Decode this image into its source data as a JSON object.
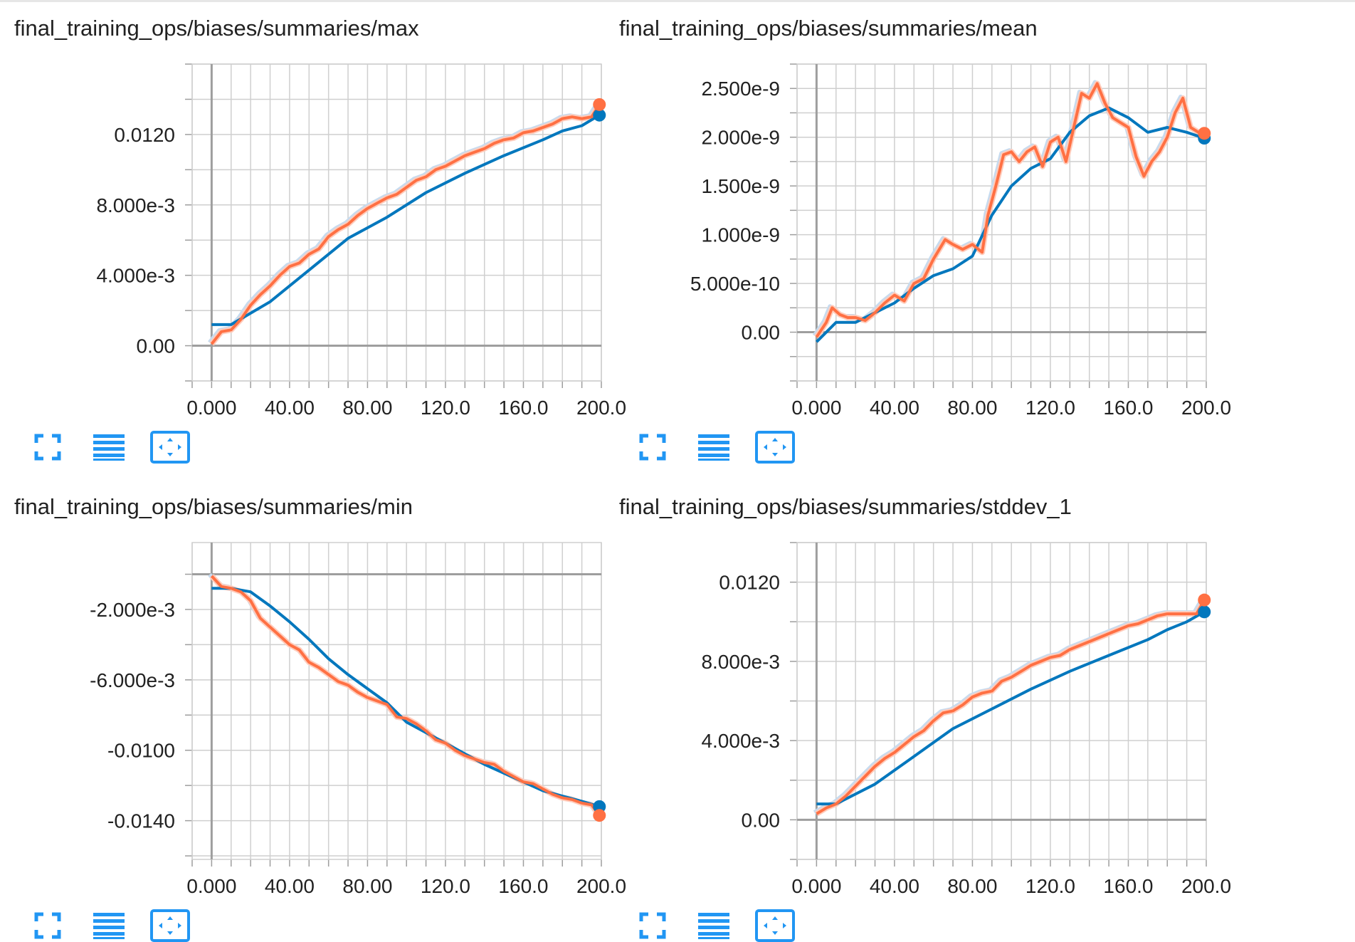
{
  "colors": {
    "smoothed": "#ff7043",
    "smoothed_shadow": "#ffccbc",
    "comparison": "#0277bd",
    "comparison_shadow": "#c6dbef",
    "grid": "#cfcfcf",
    "axis": "#9e9e9e",
    "toolbar_icon": "#2196f3"
  },
  "toolbar": {
    "icons": [
      "fullscreen-icon",
      "data-list-icon",
      "fit-domain-icon"
    ]
  },
  "chart_data": [
    {
      "type": "line",
      "title": "final_training_ops/biases/summaries/max",
      "xlim": [
        -10,
        200
      ],
      "ylim": [
        -0.002,
        0.016
      ],
      "x_ticks": [
        0,
        40,
        80,
        120,
        160,
        200
      ],
      "x_tick_labels": [
        "0.000",
        "40.00",
        "80.00",
        "120.0",
        "160.0",
        "200.0"
      ],
      "y_ticks": [
        0,
        0.004,
        0.008,
        0.012
      ],
      "y_tick_labels": [
        "0.00",
        "4.000e-3",
        "8.000e-3",
        "0.0120"
      ],
      "series": [
        {
          "role": "orange",
          "x": [
            0,
            5,
            10,
            15,
            20,
            25,
            30,
            35,
            40,
            45,
            50,
            55,
            60,
            65,
            70,
            75,
            80,
            85,
            90,
            95,
            100,
            105,
            110,
            115,
            120,
            125,
            130,
            135,
            140,
            145,
            150,
            155,
            160,
            165,
            170,
            175,
            180,
            185,
            190,
            195,
            199
          ],
          "y": [
            0.0001,
            0.0008,
            0.0009,
            0.0015,
            0.0023,
            0.0029,
            0.0034,
            0.004,
            0.0045,
            0.0047,
            0.0052,
            0.0055,
            0.0062,
            0.0066,
            0.0069,
            0.0074,
            0.0078,
            0.0081,
            0.0084,
            0.0086,
            0.009,
            0.0094,
            0.0096,
            0.01,
            0.0102,
            0.0105,
            0.0108,
            0.011,
            0.0112,
            0.0115,
            0.0117,
            0.0118,
            0.0121,
            0.0122,
            0.0124,
            0.0126,
            0.0129,
            0.013,
            0.0129,
            0.013,
            0.0137
          ]
        },
        {
          "role": "blue",
          "x": [
            0,
            10,
            30,
            50,
            70,
            90,
            110,
            130,
            150,
            170,
            180,
            190,
            199
          ],
          "y": [
            0.0012,
            0.0012,
            0.0025,
            0.0043,
            0.0061,
            0.0073,
            0.0087,
            0.0098,
            0.0108,
            0.0117,
            0.0122,
            0.0125,
            0.0131
          ]
        }
      ]
    },
    {
      "type": "line",
      "title": "final_training_ops/biases/summaries/mean",
      "xlim": [
        -10,
        200
      ],
      "ylim": [
        -5e-10,
        2.75e-09
      ],
      "x_ticks": [
        0,
        40,
        80,
        120,
        160,
        200
      ],
      "x_tick_labels": [
        "0.000",
        "40.00",
        "80.00",
        "120.0",
        "160.0",
        "200.0"
      ],
      "y_ticks": [
        0,
        5e-10,
        1e-09,
        1.5e-09,
        2e-09,
        2.5e-09
      ],
      "y_tick_labels": [
        "0.00",
        "5.000e-10",
        "1.000e-9",
        "1.500e-9",
        "2.000e-9",
        "2.500e-9"
      ],
      "series": [
        {
          "role": "orange",
          "x": [
            0,
            5,
            8,
            12,
            16,
            20,
            25,
            30,
            35,
            40,
            45,
            50,
            55,
            60,
            63,
            66,
            70,
            75,
            80,
            85,
            88,
            92,
            96,
            100,
            104,
            108,
            112,
            116,
            120,
            124,
            128,
            132,
            136,
            140,
            144,
            148,
            152,
            156,
            160,
            164,
            168,
            172,
            176,
            180,
            184,
            188,
            192,
            196,
            199
          ],
          "y": [
            -5e-11,
            1e-10,
            2.5e-10,
            1.8e-10,
            1.5e-10,
            1.5e-10,
            1.2e-10,
            2e-10,
            3e-10,
            3.8e-10,
            3.2e-10,
            5e-10,
            5.5e-10,
            7.5e-10,
            8.5e-10,
            9.5e-10,
            9e-10,
            8.5e-10,
            9e-10,
            8.2e-10,
            1.2e-09,
            1.5e-09,
            1.82e-09,
            1.85e-09,
            1.75e-09,
            1.85e-09,
            1.9e-09,
            1.7e-09,
            1.95e-09,
            2e-09,
            1.75e-09,
            2.1e-09,
            2.45e-09,
            2.4e-09,
            2.55e-09,
            2.35e-09,
            2.2e-09,
            2.15e-09,
            2.1e-09,
            1.8e-09,
            1.6e-09,
            1.75e-09,
            1.85e-09,
            2e-09,
            2.25e-09,
            2.4e-09,
            2.1e-09,
            2.05e-09,
            2.04e-09
          ]
        },
        {
          "role": "blue",
          "x": [
            0,
            10,
            20,
            30,
            40,
            50,
            60,
            70,
            80,
            90,
            100,
            110,
            120,
            130,
            140,
            150,
            160,
            170,
            180,
            190,
            199
          ],
          "y": [
            -1e-10,
            1e-10,
            1e-10,
            2e-10,
            3e-10,
            4.5e-10,
            5.8e-10,
            6.5e-10,
            7.8e-10,
            1.2e-09,
            1.5e-09,
            1.68e-09,
            1.78e-09,
            2.05e-09,
            2.22e-09,
            2.3e-09,
            2.2e-09,
            2.05e-09,
            2.1e-09,
            2.05e-09,
            1.99e-09
          ]
        }
      ]
    },
    {
      "type": "line",
      "title": "final_training_ops/biases/summaries/min",
      "xlim": [
        -10,
        200
      ],
      "ylim": [
        -0.0162,
        0.0018
      ],
      "x_ticks": [
        0,
        40,
        80,
        120,
        160,
        200
      ],
      "x_tick_labels": [
        "0.000",
        "40.00",
        "80.00",
        "120.0",
        "160.0",
        "200.0"
      ],
      "y_ticks": [
        -0.014,
        -0.01,
        -0.006,
        -0.002
      ],
      "y_tick_labels": [
        "-0.0140",
        "-0.0100",
        "-6.000e-3",
        "-2.000e-3"
      ],
      "series": [
        {
          "role": "orange",
          "x": [
            0,
            5,
            10,
            15,
            20,
            25,
            30,
            35,
            40,
            45,
            50,
            55,
            60,
            65,
            70,
            75,
            80,
            85,
            90,
            95,
            100,
            105,
            110,
            115,
            120,
            125,
            130,
            135,
            140,
            145,
            150,
            155,
            160,
            165,
            170,
            175,
            180,
            185,
            190,
            195,
            199
          ],
          "y": [
            -0.0001,
            -0.0007,
            -0.0008,
            -0.001,
            -0.0015,
            -0.0025,
            -0.003,
            -0.0035,
            -0.004,
            -0.0043,
            -0.005,
            -0.0053,
            -0.0057,
            -0.0061,
            -0.0063,
            -0.0067,
            -0.007,
            -0.0072,
            -0.0074,
            -0.0081,
            -0.0082,
            -0.0085,
            -0.0089,
            -0.0094,
            -0.0096,
            -0.01,
            -0.0103,
            -0.0105,
            -0.0107,
            -0.0108,
            -0.0112,
            -0.0115,
            -0.0118,
            -0.0119,
            -0.0122,
            -0.0125,
            -0.0127,
            -0.0128,
            -0.013,
            -0.0131,
            -0.0137
          ]
        },
        {
          "role": "blue",
          "x": [
            0,
            10,
            20,
            30,
            40,
            50,
            60,
            70,
            80,
            90,
            100,
            110,
            120,
            130,
            140,
            150,
            160,
            170,
            180,
            190,
            199
          ],
          "y": [
            -0.0008,
            -0.0008,
            -0.001,
            -0.0018,
            -0.0027,
            -0.0037,
            -0.0048,
            -0.0057,
            -0.0065,
            -0.0073,
            -0.0084,
            -0.009,
            -0.0096,
            -0.0102,
            -0.0108,
            -0.0113,
            -0.0118,
            -0.0123,
            -0.0126,
            -0.0129,
            -0.0132
          ]
        }
      ]
    },
    {
      "type": "line",
      "title": "final_training_ops/biases/summaries/stddev_1",
      "xlim": [
        -10,
        200
      ],
      "ylim": [
        -0.002,
        0.014
      ],
      "x_ticks": [
        0,
        40,
        80,
        120,
        160,
        200
      ],
      "x_tick_labels": [
        "0.000",
        "40.00",
        "80.00",
        "120.0",
        "160.0",
        "200.0"
      ],
      "y_ticks": [
        0,
        0.004,
        0.008,
        0.012
      ],
      "y_tick_labels": [
        "0.00",
        "4.000e-3",
        "8.000e-3",
        "0.0120"
      ],
      "series": [
        {
          "role": "orange",
          "x": [
            0,
            5,
            10,
            15,
            20,
            25,
            30,
            35,
            40,
            45,
            50,
            55,
            60,
            65,
            70,
            75,
            80,
            85,
            90,
            95,
            100,
            105,
            110,
            115,
            120,
            125,
            130,
            135,
            140,
            145,
            150,
            155,
            160,
            165,
            170,
            175,
            180,
            185,
            190,
            195,
            199
          ],
          "y": [
            0.0003,
            0.0006,
            0.0008,
            0.0012,
            0.0017,
            0.0022,
            0.0027,
            0.0031,
            0.0034,
            0.0038,
            0.0042,
            0.0045,
            0.005,
            0.0054,
            0.0055,
            0.0058,
            0.0062,
            0.0064,
            0.0065,
            0.007,
            0.0072,
            0.0075,
            0.0078,
            0.008,
            0.0082,
            0.0083,
            0.0086,
            0.0088,
            0.009,
            0.0092,
            0.0094,
            0.0096,
            0.0098,
            0.0099,
            0.0101,
            0.0103,
            0.0104,
            0.0104,
            0.0104,
            0.0104,
            0.0111
          ]
        },
        {
          "role": "blue",
          "x": [
            0,
            10,
            30,
            50,
            70,
            90,
            110,
            130,
            150,
            170,
            180,
            190,
            199
          ],
          "y": [
            0.0008,
            0.0008,
            0.0018,
            0.0032,
            0.0046,
            0.0056,
            0.0066,
            0.0075,
            0.0083,
            0.0091,
            0.0096,
            0.01,
            0.0105
          ]
        }
      ]
    }
  ]
}
